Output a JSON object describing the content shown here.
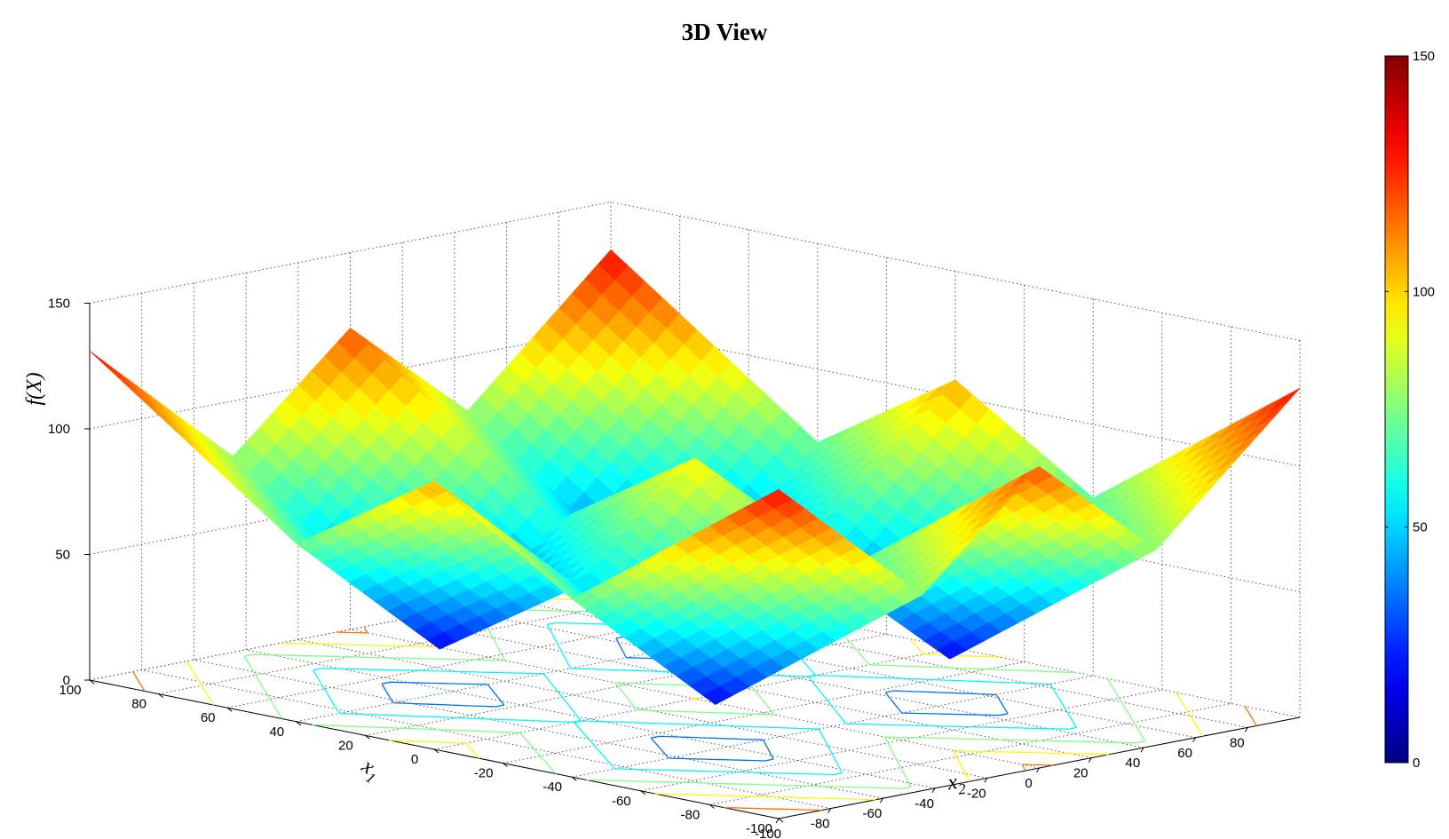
{
  "chart_data": {
    "type": "surface",
    "title": "3D View",
    "xlabel": "x",
    "xlabel_sub": "1",
    "ylabel": "x",
    "ylabel_sub": "2",
    "zlabel": "f(X)",
    "xlim": [
      -100,
      100
    ],
    "ylim": [
      -100,
      100
    ],
    "zlim": [
      0,
      150
    ],
    "x_ticks": [
      "-100",
      "-80",
      "-60",
      "-40",
      "-20",
      "0",
      "20",
      "40",
      "60",
      "80",
      "100"
    ],
    "y_ticks": [
      "-100",
      "-80",
      "-60",
      "-40",
      "-20",
      "0",
      "20",
      "40",
      "60",
      "80"
    ],
    "z_ticks": [
      "0",
      "50",
      "100",
      "150"
    ],
    "colorbar": {
      "min": 0,
      "max": 150,
      "ticks": [
        "0",
        "50",
        "100",
        "150"
      ]
    },
    "colormap": "jet",
    "grid": true,
    "contour_levels": [
      15,
      35,
      55,
      75,
      95,
      115,
      135
    ]
  }
}
